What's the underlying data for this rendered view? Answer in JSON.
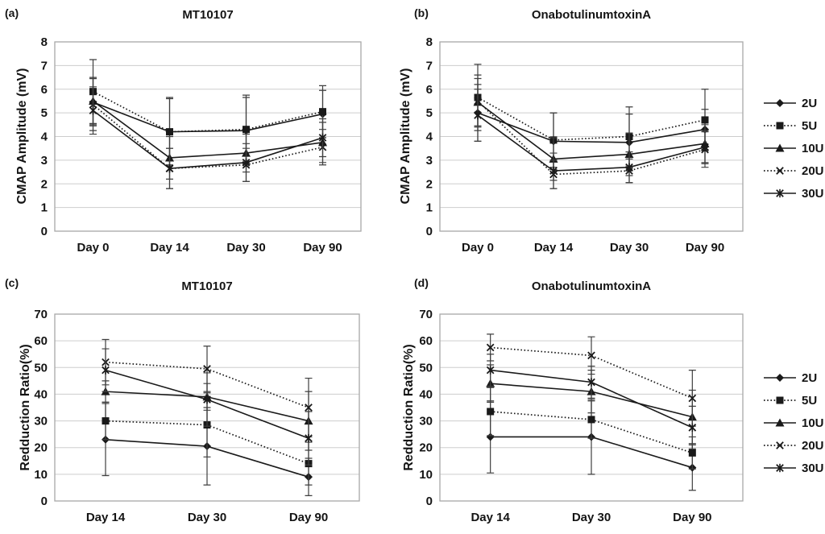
{
  "colors": {
    "line": "#1a1a1a",
    "errorbar": "#3f3f3f",
    "grid": "#cdcdcd",
    "border": "#a8a8a8",
    "text": "#141414",
    "background": "#ffffff"
  },
  "legend": {
    "position": "right",
    "entries": [
      {
        "label": "2U",
        "marker": "diamond",
        "line": "solid"
      },
      {
        "label": "5U",
        "marker": "square",
        "line": "dotted"
      },
      {
        "label": "10U",
        "marker": "triangle",
        "line": "solid"
      },
      {
        "label": "20U",
        "marker": "x",
        "line": "dotted"
      },
      {
        "label": "30U",
        "marker": "asterisk",
        "line": "solid"
      }
    ]
  },
  "chart_data": [
    {
      "id": "a",
      "panel_label": "(a)",
      "type": "line",
      "title": "MT10107",
      "ylabel": "CMAP Amplitude (mV)",
      "xlabel": "",
      "ylim": [
        0,
        8
      ],
      "ytick_step": 1,
      "grid": true,
      "categories": [
        "Day 0",
        "Day 14",
        "Day 30",
        "Day 90"
      ],
      "series": [
        {
          "name": "2U",
          "marker": "diamond",
          "line": "solid",
          "values": [
            5.45,
            4.2,
            4.25,
            4.95
          ],
          "errors": [
            1.0,
            1.4,
            1.4,
            1.0
          ]
        },
        {
          "name": "5U",
          "marker": "square",
          "line": "dotted",
          "values": [
            5.9,
            4.2,
            4.3,
            5.05
          ],
          "errors": [
            1.35,
            1.45,
            1.45,
            1.1
          ]
        },
        {
          "name": "10U",
          "marker": "triangle",
          "line": "solid",
          "values": [
            5.5,
            3.1,
            3.3,
            3.75
          ],
          "errors": [
            1.0,
            0.9,
            0.8,
            0.85
          ]
        },
        {
          "name": "20U",
          "marker": "x",
          "line": "dotted",
          "values": [
            5.35,
            2.65,
            2.8,
            3.55
          ],
          "errors": [
            1.1,
            0.85,
            0.7,
            0.75
          ]
        },
        {
          "name": "30U",
          "marker": "asterisk",
          "line": "solid",
          "values": [
            5.1,
            2.65,
            2.9,
            3.95
          ],
          "errors": [
            1.0,
            0.85,
            0.8,
            0.8
          ]
        }
      ]
    },
    {
      "id": "b",
      "panel_label": "(b)",
      "type": "line",
      "title": "OnabotulinumtoxinA",
      "ylabel": "CMAP Amplitude (mV)",
      "xlabel": "",
      "ylim": [
        0,
        8
      ],
      "ytick_step": 1,
      "grid": true,
      "categories": [
        "Day 0",
        "Day 14",
        "Day 30",
        "Day 90"
      ],
      "series": [
        {
          "name": "2U",
          "marker": "diamond",
          "line": "solid",
          "values": [
            5.0,
            3.8,
            3.75,
            4.3
          ],
          "errors": [
            1.2,
            1.2,
            1.2,
            0.85
          ]
        },
        {
          "name": "5U",
          "marker": "square",
          "line": "dotted",
          "values": [
            5.65,
            3.85,
            4.0,
            4.7
          ],
          "errors": [
            1.4,
            1.15,
            1.25,
            1.3
          ]
        },
        {
          "name": "10U",
          "marker": "triangle",
          "line": "solid",
          "values": [
            5.45,
            3.05,
            3.25,
            3.7
          ],
          "errors": [
            1.0,
            0.9,
            0.9,
            0.8
          ]
        },
        {
          "name": "20U",
          "marker": "x",
          "line": "dotted",
          "values": [
            5.5,
            2.4,
            2.55,
            3.45
          ],
          "errors": [
            1.1,
            0.6,
            0.5,
            0.75
          ]
        },
        {
          "name": "30U",
          "marker": "asterisk",
          "line": "solid",
          "values": [
            4.9,
            2.55,
            2.7,
            3.55
          ],
          "errors": [
            1.1,
            0.75,
            0.65,
            0.7
          ]
        }
      ]
    },
    {
      "id": "c",
      "panel_label": "(c)",
      "type": "line",
      "title": "MT10107",
      "ylabel": "Redduction Ratio(%)",
      "xlabel": "",
      "ylim": [
        0,
        70
      ],
      "ytick_step": 10,
      "grid": true,
      "categories": [
        "Day 14",
        "Day 30",
        "Day 90"
      ],
      "series": [
        {
          "name": "2U",
          "marker": "diamond",
          "line": "solid",
          "values": [
            23,
            20.5,
            9
          ],
          "errors": [
            13.5,
            14.5,
            7
          ]
        },
        {
          "name": "5U",
          "marker": "square",
          "line": "dotted",
          "values": [
            30,
            28.5,
            14
          ],
          "errors": [
            7,
            12,
            8
          ]
        },
        {
          "name": "10U",
          "marker": "triangle",
          "line": "solid",
          "values": [
            41,
            39,
            30
          ],
          "errors": [
            4,
            5,
            11
          ]
        },
        {
          "name": "20U",
          "marker": "x",
          "line": "dotted",
          "values": [
            52,
            49.5,
            35
          ],
          "errors": [
            8.5,
            8.5,
            11
          ]
        },
        {
          "name": "30U",
          "marker": "asterisk",
          "line": "solid",
          "values": [
            49,
            38,
            23.5
          ],
          "errors": [
            8,
            10,
            10
          ]
        }
      ]
    },
    {
      "id": "d",
      "panel_label": "(d)",
      "type": "line",
      "title": "OnabotulinumtoxinA",
      "ylabel": "Redduction Ratio(%)",
      "xlabel": "",
      "ylim": [
        0,
        70
      ],
      "ytick_step": 10,
      "grid": true,
      "categories": [
        "Day 14",
        "Day 30",
        "Day 90"
      ],
      "series": [
        {
          "name": "2U",
          "marker": "diamond",
          "line": "solid",
          "values": [
            24,
            24,
            12.5
          ],
          "errors": [
            13.5,
            14,
            8.5
          ]
        },
        {
          "name": "5U",
          "marker": "square",
          "line": "dotted",
          "values": [
            33.5,
            30.5,
            18
          ],
          "errors": [
            9,
            7,
            6
          ]
        },
        {
          "name": "10U",
          "marker": "triangle",
          "line": "solid",
          "values": [
            44,
            41,
            31.5
          ],
          "errors": [
            7,
            8,
            10
          ]
        },
        {
          "name": "20U",
          "marker": "x",
          "line": "dotted",
          "values": [
            57.5,
            54.5,
            38.5
          ],
          "errors": [
            5,
            7,
            10.5
          ]
        },
        {
          "name": "30U",
          "marker": "asterisk",
          "line": "solid",
          "values": [
            49,
            44.5,
            27.5
          ],
          "errors": [
            6,
            6,
            8
          ]
        }
      ]
    }
  ]
}
